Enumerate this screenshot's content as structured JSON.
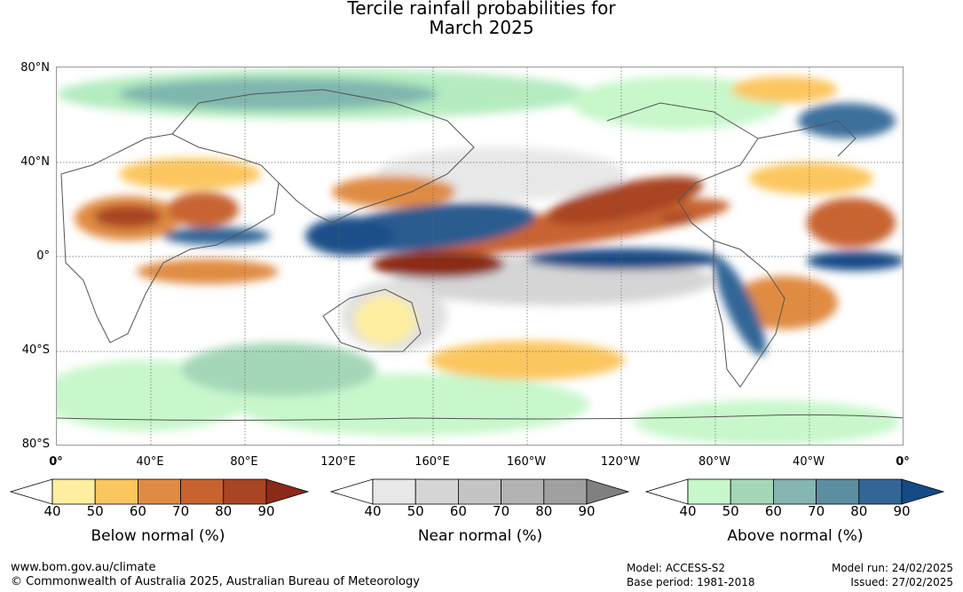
{
  "title": {
    "line1": "Tercile rainfall probabilities for",
    "line2": "March 2025"
  },
  "axes": {
    "latitudes": [
      "80°N",
      "40°N",
      "0°",
      "40°S",
      "80°S"
    ],
    "longitudes": [
      "0°",
      "40°E",
      "80°E",
      "120°E",
      "160°E",
      "160°W",
      "120°W",
      "80°W",
      "40°W",
      "0°"
    ]
  },
  "legends": [
    {
      "caption": "Below normal (%)",
      "ticks": [
        "40",
        "50",
        "60",
        "70",
        "80",
        "90"
      ],
      "colors": [
        "#ffffff",
        "#fdeea0",
        "#fcc65e",
        "#e08b43",
        "#c86330",
        "#a94524",
        "#8c2a18"
      ]
    },
    {
      "caption": "Near normal (%)",
      "ticks": [
        "40",
        "50",
        "60",
        "70",
        "80",
        "90"
      ],
      "colors": [
        "#ffffff",
        "#e8e8e8",
        "#d5d5d5",
        "#c4c4c4",
        "#b3b3b3",
        "#a0a0a0",
        "#808080"
      ]
    },
    {
      "caption": "Above normal (%)",
      "ticks": [
        "40",
        "50",
        "60",
        "70",
        "80",
        "90"
      ],
      "colors": [
        "#ffffff",
        "#c8f7cb",
        "#a4d7b8",
        "#84b5b0",
        "#5b8ea0",
        "#336697",
        "#154a86"
      ]
    }
  ],
  "footer": {
    "website": "www.bom.gov.au/climate",
    "copyright": "© Commonwealth of Australia 2025, Australian Bureau of Meteorology",
    "model": "Model: ACCESS-S2",
    "base_period": "Base period: 1981-2018",
    "model_run": "Model run: 24/02/2025",
    "issued": "Issued: 27/02/2025"
  }
}
